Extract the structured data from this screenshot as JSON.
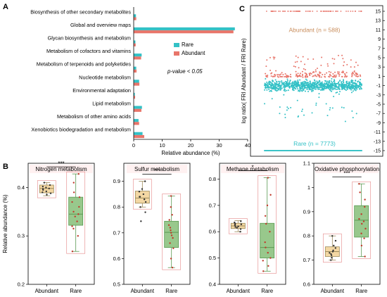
{
  "panel_labels": {
    "a": "A",
    "b": "B",
    "c": "C"
  },
  "colors": {
    "rare": "#33c1c6",
    "abundant": "#e8756a",
    "box_abundant": "#f3d7a3",
    "box_rare": "#98c88c",
    "box_rare_edge": "#5a9a52",
    "outline": "#e89797",
    "title_bg": "#fff1f1"
  },
  "chart_data": [
    {
      "type": "bar",
      "orientation": "horizontal",
      "categories": [
        "Biosynthesis of other secondary metabolites",
        "Global and overview maps",
        "Glycan biosynthesis and metabolism",
        "Metabolism of cofactors and vitamins",
        "Metabolism of terpenoids and polyketides",
        "Nucleotide metabolism",
        "Environmental adaptation",
        "Lipid metabolism",
        "Metabolism of other amino acids",
        "Xenobiotics biodegradation and metabolism"
      ],
      "series": [
        {
          "name": "Rare",
          "values": [
            0.8,
            35.5,
            0.6,
            2.8,
            0.9,
            1.9,
            0.4,
            2.9,
            1.7,
            3.1
          ]
        },
        {
          "name": "Abundant",
          "values": [
            0.9,
            35.0,
            0.7,
            2.6,
            1.0,
            2.0,
            0.5,
            2.7,
            1.9,
            3.7
          ]
        }
      ],
      "xlabel": "Relative abundance (%)",
      "xlim": [
        0,
        40
      ],
      "xticks": [
        0,
        10,
        20,
        30,
        40
      ],
      "annotation": "p-value < 0.05",
      "legend_position": "right"
    },
    {
      "type": "scatter",
      "ylabel": "log ratio( FRI Abundant / FRI Rare)",
      "ylim": [
        -15,
        15
      ],
      "yticks": [
        15,
        13,
        11,
        9,
        7,
        5,
        3,
        1,
        -1,
        -3,
        -5,
        -7,
        -9,
        -11,
        -13,
        -15
      ],
      "series": [
        {
          "name": "Abundant (n = 588)",
          "count": 588,
          "cap_value": 15
        },
        {
          "name": "Rare (n = 7773)",
          "count": 7773,
          "cap_value": -15
        }
      ]
    },
    {
      "type": "box",
      "title": "Nitrogen metabolism",
      "categories": [
        "Abundant",
        "Rare"
      ],
      "ylabel": "Relative abundance (%)",
      "ylim": [
        0.2,
        0.45
      ],
      "yticks": [
        0.2,
        0.3,
        0.4
      ],
      "boxes": [
        {
          "whislo": 0.383,
          "q1": 0.389,
          "med": 0.398,
          "q3": 0.405,
          "whishi": 0.41
        },
        {
          "whislo": 0.268,
          "q1": 0.322,
          "med": 0.345,
          "q3": 0.38,
          "whishi": 0.428
        }
      ],
      "points": [
        [
          0.39,
          0.395,
          0.4,
          0.41,
          0.385,
          0.398,
          0.392,
          0.402,
          0.397,
          0.388,
          0.405
        ],
        [
          0.268,
          0.3,
          0.32,
          0.33,
          0.34,
          0.345,
          0.35,
          0.36,
          0.37,
          0.38,
          0.39,
          0.41,
          0.428,
          0.315
        ]
      ],
      "significance": "***"
    },
    {
      "type": "box",
      "title": "Sulfur metabolism",
      "categories": [
        "Abundant",
        "Rare"
      ],
      "ylim": [
        0.5,
        0.97
      ],
      "yticks": [
        0.5,
        0.6,
        0.7,
        0.8,
        0.9
      ],
      "boxes": [
        {
          "whislo": 0.8,
          "q1": 0.815,
          "med": 0.835,
          "q3": 0.862,
          "whishi": 0.9
        },
        {
          "whislo": 0.565,
          "q1": 0.643,
          "med": 0.702,
          "q3": 0.745,
          "whishi": 0.843
        }
      ],
      "points": [
        [
          0.745,
          0.78,
          0.8,
          0.82,
          0.83,
          0.84,
          0.85,
          0.86,
          0.87,
          0.9,
          0.84
        ],
        [
          0.565,
          0.6,
          0.64,
          0.66,
          0.68,
          0.7,
          0.71,
          0.72,
          0.73,
          0.75,
          0.77,
          0.8,
          0.843,
          0.69
        ]
      ],
      "significance": "***"
    },
    {
      "type": "box",
      "title": "Methane metabolism",
      "categories": [
        "Abundant",
        "Rare"
      ],
      "ylim": [
        0.4,
        0.86
      ],
      "yticks": [
        0.4,
        0.5,
        0.6,
        0.7,
        0.8
      ],
      "boxes": [
        {
          "whislo": 0.6,
          "q1": 0.612,
          "med": 0.622,
          "q3": 0.632,
          "whishi": 0.642
        },
        {
          "whislo": 0.45,
          "q1": 0.5,
          "med": 0.54,
          "q3": 0.632,
          "whishi": 0.805
        }
      ],
      "points": [
        [
          0.6,
          0.61,
          0.615,
          0.62,
          0.625,
          0.63,
          0.635,
          0.64,
          0.618,
          0.628
        ],
        [
          0.45,
          0.47,
          0.49,
          0.5,
          0.52,
          0.54,
          0.56,
          0.6,
          0.63,
          0.66,
          0.7,
          0.74,
          0.805
        ]
      ],
      "significance": "*"
    },
    {
      "type": "box",
      "title": "Oxidative phosphorylation",
      "categories": [
        "Abundant",
        "Rare"
      ],
      "ylim": [
        0.6,
        1.1
      ],
      "yticks": [
        0.6,
        0.7,
        0.8,
        0.9,
        1.0,
        1.1
      ],
      "boxes": [
        {
          "whislo": 0.7,
          "q1": 0.715,
          "med": 0.735,
          "q3": 0.755,
          "whishi": 0.8
        },
        {
          "whislo": 0.715,
          "q1": 0.795,
          "med": 0.865,
          "q3": 0.925,
          "whishi": 1.015
        }
      ],
      "points": [
        [
          0.7,
          0.71,
          0.72,
          0.73,
          0.735,
          0.74,
          0.75,
          0.76,
          0.78,
          0.8,
          0.725
        ],
        [
          0.715,
          0.76,
          0.79,
          0.81,
          0.83,
          0.85,
          0.87,
          0.89,
          0.92,
          0.95,
          0.98,
          1.015,
          0.86
        ]
      ],
      "significance": "***"
    }
  ]
}
